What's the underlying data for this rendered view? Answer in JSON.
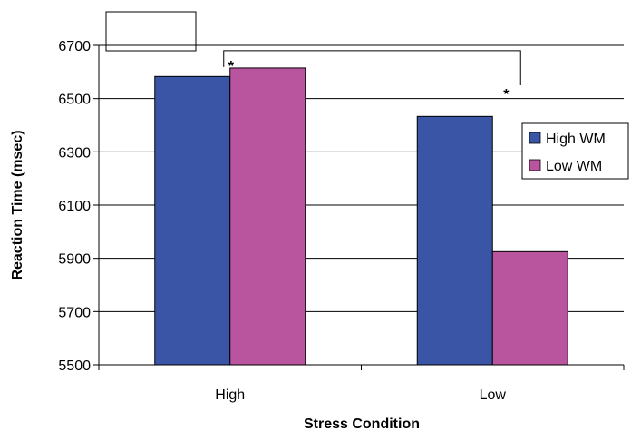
{
  "chart_data": {
    "type": "bar",
    "categories": [
      "High",
      "Low"
    ],
    "series": [
      {
        "name": "High WM",
        "values": [
          6583,
          6433
        ],
        "color": "#3A55A5"
      },
      {
        "name": "Low WM",
        "values": [
          6615,
          5925
        ],
        "color": "#B8559E"
      }
    ],
    "xlabel": "Stress Condition",
    "ylabel": "Reaction Time (msec)",
    "ylim": [
      5500,
      6700
    ],
    "yticks": [
      5500,
      5700,
      5900,
      6100,
      6300,
      6500,
      6700
    ],
    "grid": true,
    "legend_position": "right",
    "annotations": [
      {
        "text": "*",
        "between": "High / High WM vs Low / High WM"
      },
      {
        "text": "*",
        "between": "High / High WM vs Low / High WM"
      }
    ]
  }
}
